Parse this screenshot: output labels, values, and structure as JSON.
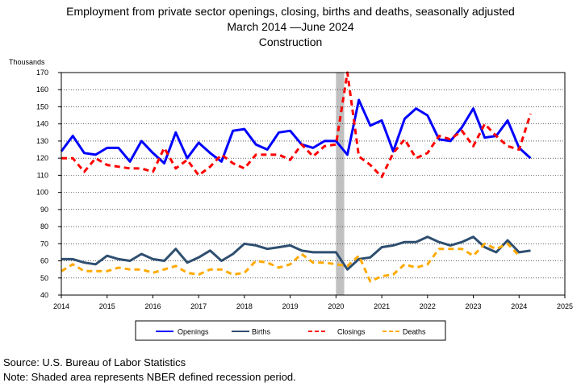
{
  "chart_data": {
    "type": "line",
    "title_lines": [
      "Employment from private sector openings, closing, births and deaths, seasonally adjusted",
      "March 2014 —June 2024",
      "Construction"
    ],
    "ylabel": "Thousands",
    "xlabel": "",
    "xlim": [
      2014,
      2025
    ],
    "ylim": [
      40,
      170
    ],
    "x_ticks": [
      "2014",
      "2015",
      "2016",
      "2017",
      "2018",
      "2019",
      "2020",
      "2021",
      "2022",
      "2023",
      "2024",
      "2025"
    ],
    "y_ticks": [
      "40",
      "50",
      "60",
      "70",
      "80",
      "90",
      "100",
      "110",
      "120",
      "130",
      "140",
      "150",
      "160",
      "170"
    ],
    "recession": {
      "start": 2020.0,
      "end": 2020.18,
      "color": "#c0c0c0"
    },
    "x_start": 2014.0,
    "x_step": 0.25,
    "series": [
      {
        "name": "Openings",
        "color": "#0000ff",
        "style": "solid",
        "values": [
          124,
          133,
          123,
          122,
          126,
          126,
          118,
          130,
          123,
          117,
          135,
          120,
          129,
          123,
          118,
          136,
          137,
          128,
          125,
          135,
          136,
          128,
          126,
          130,
          130,
          122,
          154,
          139,
          142,
          124,
          143,
          149,
          145,
          131,
          130,
          138,
          149,
          132,
          133,
          142,
          126,
          120
        ]
      },
      {
        "name": "Births",
        "color": "#2f4f70",
        "style": "solid",
        "values": [
          61,
          61,
          59,
          58,
          63,
          61,
          60,
          64,
          61,
          60,
          67,
          59,
          62,
          66,
          60,
          64,
          70,
          69,
          67,
          68,
          69,
          66,
          65,
          65,
          65,
          55,
          61,
          62,
          68,
          69,
          71,
          71,
          74,
          71,
          69,
          71,
          74,
          68,
          65,
          72,
          65,
          66
        ]
      },
      {
        "name": "Closings",
        "color": "#ff0000",
        "style": "dashed",
        "values": [
          120,
          120,
          112,
          120,
          116,
          115,
          114,
          114,
          112,
          126,
          114,
          119,
          110,
          115,
          122,
          117,
          114,
          122,
          122,
          122,
          119,
          128,
          121,
          127,
          128,
          172,
          121,
          116,
          109,
          123,
          131,
          120,
          123,
          133,
          131,
          136,
          127,
          140,
          133,
          127,
          125,
          146
        ]
      },
      {
        "name": "Deaths",
        "color": "#ffaa00",
        "style": "dashed",
        "values": [
          54,
          58,
          54,
          54,
          54,
          56,
          55,
          55,
          53,
          55,
          57,
          53,
          52,
          55,
          55,
          52,
          53,
          60,
          59,
          56,
          58,
          64,
          59,
          59,
          58,
          57,
          63,
          48,
          51,
          52,
          58,
          56,
          58,
          67,
          67,
          67,
          63,
          70,
          67,
          70,
          63
        ]
      }
    ]
  },
  "source_note": "Source: U.S. Bureau of Labor Statistics",
  "shade_note": "Note: Shaded area represents NBER defined recession period."
}
